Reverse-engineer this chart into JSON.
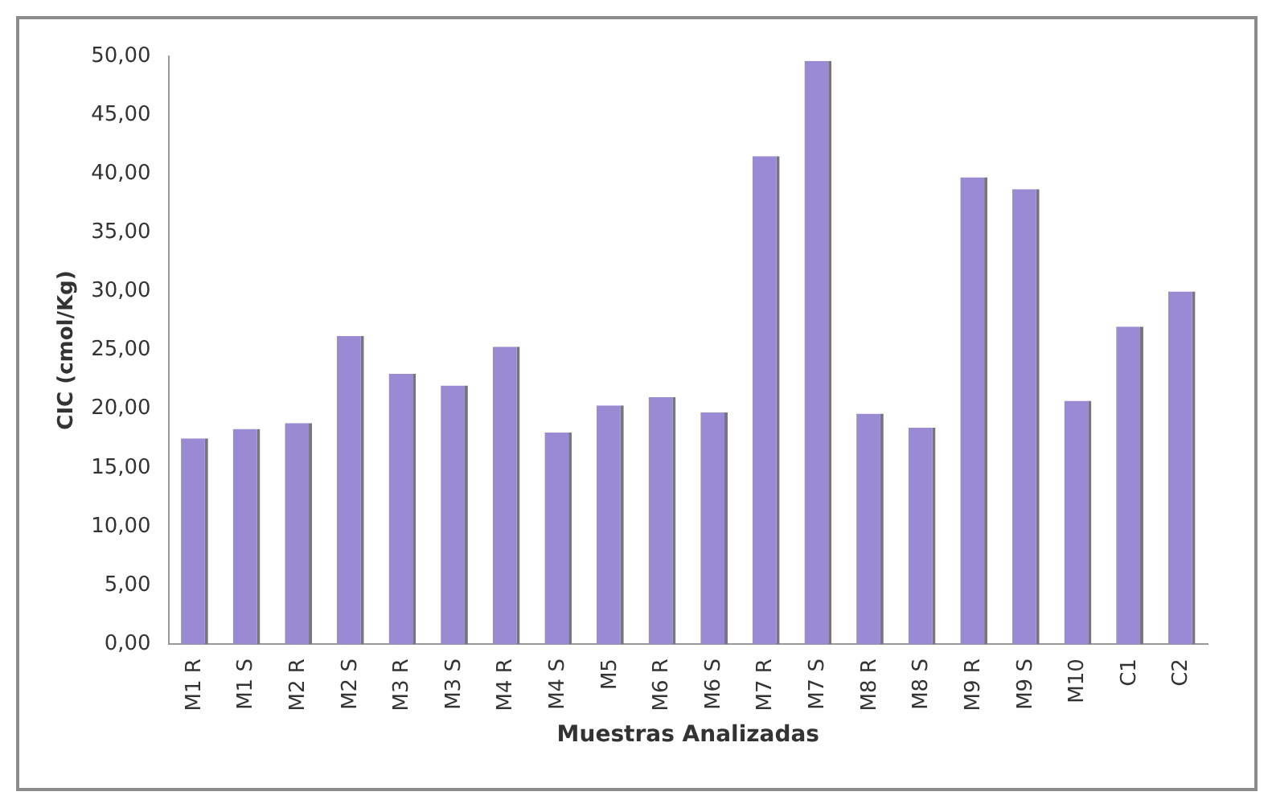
{
  "chart_data": {
    "type": "bar",
    "xlabel": "Muestras Analizadas",
    "ylabel": "CIC (cmol/Kg)",
    "categories": [
      "M1 R",
      "M1 S",
      "M2 R",
      "M2 S",
      "M3 R",
      "M3 S",
      "M4 R",
      "M4 S",
      "M5",
      "M6 R",
      "M6 S",
      "M7 R",
      "M7 S",
      "M8 R",
      "M8 S",
      "M9 R",
      "M9 S",
      "M10",
      "C1",
      "C2"
    ],
    "values": [
      17.5,
      18.3,
      18.8,
      26.2,
      23,
      22,
      25.3,
      18,
      20.3,
      21,
      19.7,
      41.5,
      49.6,
      19.6,
      18.4,
      39.7,
      38.7,
      20.7,
      27,
      30
    ],
    "color": "#9a8ad4",
    "ylim": [
      0,
      50
    ],
    "yticks": [
      {
        "value": 0,
        "label": "0,00"
      },
      {
        "value": 5,
        "label": "5,00"
      },
      {
        "value": 10,
        "label": "10,00"
      },
      {
        "value": 15,
        "label": "15,00"
      },
      {
        "value": 20,
        "label": "20,00"
      },
      {
        "value": 25,
        "label": "25,00"
      },
      {
        "value": 30,
        "label": "30,00"
      },
      {
        "value": 35,
        "label": "35,00"
      },
      {
        "value": 40,
        "label": "40,00"
      },
      {
        "value": 45,
        "label": "45,00"
      },
      {
        "value": 50,
        "label": "50,00"
      }
    ],
    "grid": false,
    "legend": false
  }
}
